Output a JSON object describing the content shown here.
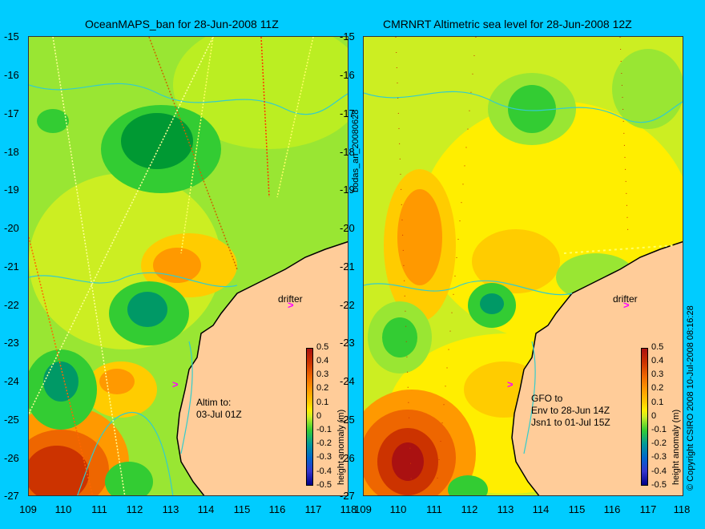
{
  "left_panel": {
    "title": "OceanMAPS_ban for 28-Jun-2008 11Z",
    "annotation": "Altim to:\n03-Jul 01Z",
    "drifter_label": "drifter"
  },
  "right_panel": {
    "title": "CMRNRT Altimetric sea level  for 28-Jun-2008 12Z",
    "annotation": "GFO to\nEnv to 28-Jun 14Z\nJsn1 to 01-Jul 15Z",
    "drifter_label": "drifter"
  },
  "side_label": "bodas_an_20080628",
  "copyright": "© Copyright CSIRO 2008   10-Jul-2008 08:16:28",
  "arrow_glyph": ">",
  "y_ticks": [
    "-15",
    "-16",
    "-17",
    "-18",
    "-19",
    "-20",
    "-21",
    "-22",
    "-23",
    "-24",
    "-25",
    "-26",
    "-27"
  ],
  "x_ticks": [
    "109",
    "110",
    "111",
    "112",
    "113",
    "114",
    "115",
    "116",
    "117",
    "118"
  ],
  "colorbar": {
    "label": "height anomaly (m)",
    "ticks": [
      "0.5",
      "0.4",
      "0.3",
      "0.2",
      "0.1",
      "0",
      "-0.1",
      "-0.2",
      "-0.3",
      "-0.4",
      "-0.5"
    ]
  },
  "colors": {
    "background": "#00ccff",
    "land": "#ffcc99",
    "contour": "#33cccc",
    "drifter_marker": "#ff00ff"
  }
}
